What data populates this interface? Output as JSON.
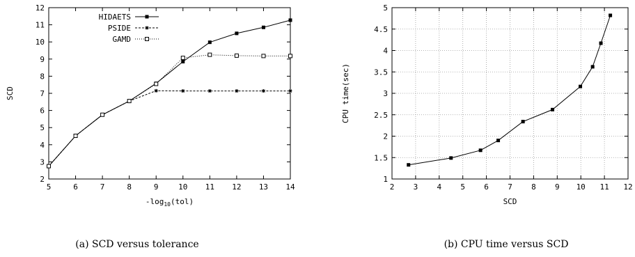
{
  "chart_data": [
    {
      "type": "line",
      "caption": "(a) SCD versus tolerance",
      "xlabel_prefix": "-log",
      "xlabel_sub": "10",
      "xlabel_suffix": "(tol)",
      "ylabel": "SCD",
      "xlim": [
        5,
        14
      ],
      "ylim": [
        2,
        12
      ],
      "xticks": [
        5,
        6,
        7,
        8,
        9,
        10,
        11,
        12,
        13,
        14
      ],
      "yticks": [
        2,
        3,
        4,
        5,
        6,
        7,
        8,
        9,
        10,
        11,
        12
      ],
      "grid": false,
      "legend_position": "top-left",
      "series": [
        {
          "name": "HIDAETS",
          "style": "solid",
          "marker": "filled-square",
          "x": [
            5,
            6,
            7,
            8,
            9,
            10,
            11,
            12,
            13,
            14
          ],
          "y": [
            2.75,
            4.52,
            5.75,
            6.55,
            7.58,
            8.85,
            9.98,
            10.5,
            10.85,
            11.27
          ]
        },
        {
          "name": "PSIDE",
          "style": "dashed",
          "marker": "star",
          "x": [
            5,
            6,
            7,
            8,
            9,
            10,
            11,
            12,
            13,
            14
          ],
          "y": [
            2.75,
            4.52,
            5.75,
            6.55,
            7.15,
            7.14,
            7.14,
            7.14,
            7.14,
            7.14
          ]
        },
        {
          "name": "GAMD",
          "style": "dotted",
          "marker": "open-square",
          "x": [
            5,
            6,
            7,
            8,
            9,
            10,
            11,
            12,
            13,
            14
          ],
          "y": [
            2.75,
            4.52,
            5.75,
            6.55,
            7.55,
            9.07,
            9.25,
            9.2,
            9.18,
            9.18
          ]
        }
      ]
    },
    {
      "type": "line",
      "caption": "(b) CPU time versus SCD",
      "xlabel": "SCD",
      "ylabel": "CPU time(sec)",
      "xlim": [
        2,
        12
      ],
      "ylim": [
        1,
        5
      ],
      "xticks": [
        2,
        3,
        4,
        5,
        6,
        7,
        8,
        9,
        10,
        11,
        12
      ],
      "yticks": [
        1,
        1.5,
        2,
        2.5,
        3,
        3.5,
        4,
        4.5,
        5
      ],
      "grid": true,
      "series": [
        {
          "style": "solid",
          "marker": "filled-square",
          "x": [
            2.7,
            4.5,
            5.75,
            6.5,
            7.55,
            8.8,
            9.98,
            10.5,
            10.85,
            11.25
          ],
          "y": [
            1.33,
            1.49,
            1.67,
            1.9,
            2.34,
            2.62,
            3.16,
            3.62,
            4.17,
            4.82
          ]
        }
      ]
    }
  ]
}
